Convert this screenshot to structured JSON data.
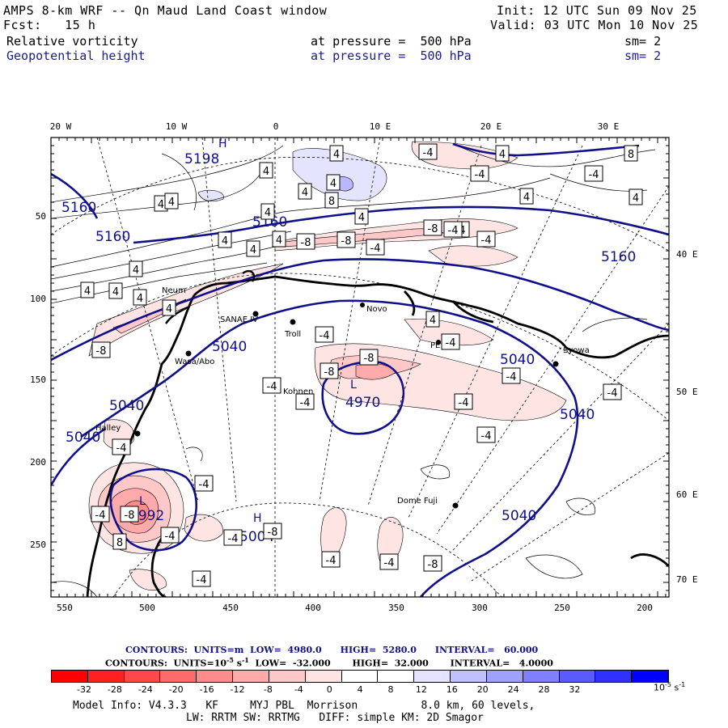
{
  "header": {
    "title": "AMPS 8-km WRF -- Qn Maud Land Coast window",
    "init": "Init: 12 UTC Sun 09 Nov 25",
    "fcst": "Fcst:   15 h",
    "valid": "Valid: 03 UTC Mon 10 Nov 25",
    "field1": "Relative vorticity",
    "field1_level": "at pressure =  500 hPa",
    "field1_sm": "sm= 2",
    "field2": "Geopotential height",
    "field2_level": "at pressure =  500 hPa",
    "field2_sm": "sm= 2"
  },
  "axes": {
    "top_lon": [
      "20 W",
      "10 W",
      "0",
      "10 E",
      "20 E",
      "30 E"
    ],
    "right_lon": [
      "40 E",
      "50 E",
      "60 E",
      "70 E"
    ],
    "left_y": [
      "50",
      "100",
      "150",
      "200",
      "250"
    ],
    "bottom_x": [
      "550",
      "500",
      "450",
      "400",
      "350",
      "300",
      "250",
      "200"
    ]
  },
  "stations": [
    "Neum",
    "SANAE IV",
    "Novo",
    "Troll",
    "Syowa",
    "Kohnen",
    "Wasa/Abo",
    "Halley",
    "Dome Fuji",
    "PE"
  ],
  "height_labels": [
    "5198",
    "5160",
    "5160",
    "5160",
    "5160",
    "5040",
    "5040",
    "5040",
    "5040",
    "5040",
    "5040",
    "4970",
    "4992",
    "5004"
  ],
  "pressure_centers": [
    "L",
    "L",
    "H",
    "H"
  ],
  "vort_labels": [
    "4",
    "4",
    "4",
    "4",
    "4",
    "4",
    "4",
    "4",
    "4",
    "4",
    "4",
    "4",
    "4",
    "4",
    "4",
    "4",
    "4",
    "4",
    "4",
    "4",
    "8",
    "8",
    "-4",
    "-4",
    "-4",
    "-4",
    "-4",
    "-4",
    "-4",
    "-4",
    "-4",
    "-4",
    "-4",
    "-4",
    "-4",
    "-4",
    "-4",
    "-4",
    "-4",
    "-4",
    "-4",
    "-4",
    "-4",
    "-8",
    "-8",
    "-8",
    "-8",
    "-8",
    "-8",
    "-8",
    "8",
    "-8",
    "-8",
    "-4",
    "-4"
  ],
  "contour_info": {
    "line1": "CONTOURS:  UNITS=m  LOW=  4980.0      HIGH=  5280.0      INTERVAL=   60.000",
    "line2": "CONTOURS:  UNITS=10",
    "line2_sup": "-5",
    "line2_rest": " s",
    "line2_sup2": "-1",
    "line2_tail": "  LOW=  -32.000       HIGH=  32.000       INTERVAL=   4.0000"
  },
  "colorbar": {
    "labels": [
      "-32",
      "-28",
      "-24",
      "-20",
      "-16",
      "-12",
      "-8",
      "-4",
      "0",
      "4",
      "8",
      "12",
      "16",
      "20",
      "24",
      "28",
      "32"
    ],
    "units": "10",
    "units_sup": "-5",
    "units_s": " s",
    "units_sup2": "-1",
    "colors": [
      "#ff0000",
      "#ff2020",
      "#ff4848",
      "#ff6a6a",
      "#ff8c8c",
      "#ffaaaa",
      "#ffc8c8",
      "#ffe4e4",
      "#ffffff",
      "#ffffff",
      "#e4e4ff",
      "#c0c0ff",
      "#a0a0ff",
      "#8080ff",
      "#5a5aff",
      "#3030ff",
      "#0000ff"
    ]
  },
  "footer": {
    "model": "Model Info: V4.3.3   KF     MYJ PBL  Morrison          8.0 km, 60 levels,",
    "physics": "LW: RRTM SW: RRTMG   DIFF: simple KM: 2D Smagor"
  }
}
